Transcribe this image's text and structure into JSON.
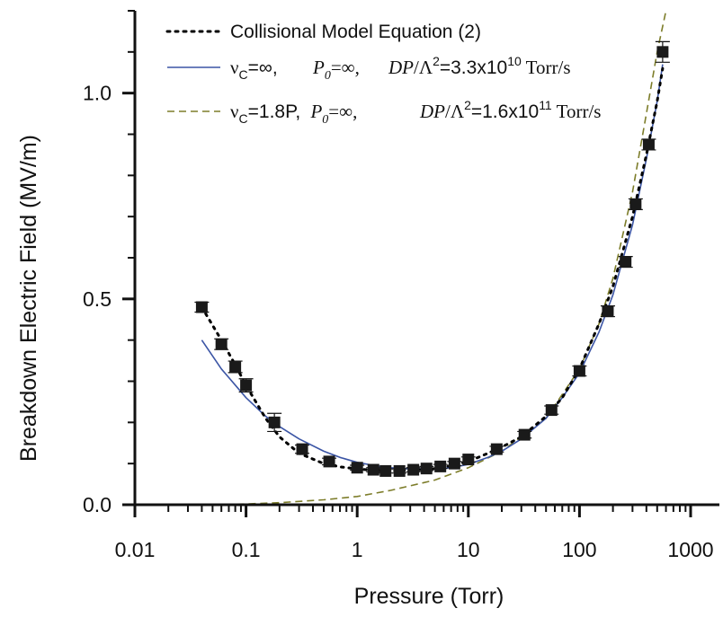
{
  "chart_data": {
    "type": "scatter",
    "xlabel": "Pressure (Torr)",
    "ylabel": "Breakdown Electric Field (MV/m)",
    "xscale": "log",
    "xlim": [
      0.01,
      1000
    ],
    "ylim": [
      0.0,
      1.2
    ],
    "xticks": [
      0.01,
      0.1,
      1,
      10,
      100,
      1000
    ],
    "xtick_labels": [
      "0.01",
      "0.1",
      "1",
      "10",
      "100",
      "1000"
    ],
    "yticks": [
      0.0,
      0.5,
      1.0
    ],
    "ytick_labels": [
      "0.0",
      "0.5",
      "1.0"
    ],
    "grid": false,
    "legend_position": "top-left",
    "colors": {
      "data": "#1a1a1a",
      "collisional": "#000000",
      "blue_model": "#3b55a5",
      "green_model": "#7d7d2a"
    },
    "data_points": {
      "x": [
        0.04,
        0.06,
        0.08,
        0.1,
        0.18,
        0.32,
        0.56,
        1.0,
        1.4,
        1.8,
        2.4,
        3.2,
        4.2,
        5.6,
        7.5,
        10,
        18,
        32,
        56,
        100,
        180,
        260,
        320,
        420,
        560
      ],
      "y": [
        0.48,
        0.39,
        0.335,
        0.29,
        0.2,
        0.135,
        0.105,
        0.09,
        0.085,
        0.082,
        0.082,
        0.085,
        0.088,
        0.093,
        0.1,
        0.11,
        0.135,
        0.17,
        0.23,
        0.325,
        0.47,
        0.59,
        0.73,
        0.875,
        1.1
      ],
      "yerr": [
        0.012,
        0.013,
        0.014,
        0.016,
        0.022,
        0.01,
        0.008,
        0.006,
        0.005,
        0.005,
        0.005,
        0.005,
        0.005,
        0.005,
        0.005,
        0.006,
        0.007,
        0.008,
        0.01,
        0.012,
        0.013,
        0.013,
        0.013,
        0.013,
        0.025
      ]
    },
    "series": [
      {
        "name": "Collisional Model Equation (2)",
        "style": "dotted",
        "x": [
          0.04,
          0.06,
          0.08,
          0.1,
          0.15,
          0.2,
          0.3,
          0.5,
          0.7,
          1.0,
          1.5,
          2,
          3,
          5,
          7,
          10,
          15,
          20,
          30,
          50,
          70,
          100,
          150,
          200,
          300,
          400,
          500,
          560
        ],
        "y": [
          0.48,
          0.4,
          0.34,
          0.29,
          0.21,
          0.165,
          0.125,
          0.1,
          0.092,
          0.087,
          0.083,
          0.082,
          0.083,
          0.088,
          0.095,
          0.105,
          0.125,
          0.14,
          0.165,
          0.215,
          0.26,
          0.33,
          0.44,
          0.53,
          0.7,
          0.85,
          0.98,
          1.06
        ]
      },
      {
        "name": "νC=∞,   P0=∞,   DP/Λ2=3.3x1010 Torr/s",
        "style": "solid",
        "x": [
          0.04,
          0.06,
          0.1,
          0.15,
          0.2,
          0.3,
          0.5,
          0.7,
          1.0,
          1.5,
          2,
          3,
          5,
          7,
          10,
          15,
          20,
          30,
          50,
          70,
          100,
          150,
          200,
          300,
          400,
          500,
          560
        ],
        "y": [
          0.4,
          0.33,
          0.26,
          0.215,
          0.19,
          0.16,
          0.13,
          0.115,
          0.103,
          0.094,
          0.09,
          0.087,
          0.087,
          0.09,
          0.098,
          0.115,
          0.13,
          0.16,
          0.21,
          0.26,
          0.32,
          0.42,
          0.51,
          0.68,
          0.84,
          0.98,
          1.07
        ]
      },
      {
        "name": "νC=1.8P,  P0=∞,   DP/Λ2=1.6x1011 Torr/s",
        "style": "dashed",
        "x": [
          0.04,
          0.1,
          0.2,
          0.5,
          1,
          2,
          5,
          10,
          20,
          50,
          100,
          150,
          200,
          300,
          400,
          500,
          600
        ],
        "y": [
          0.0,
          0.002,
          0.005,
          0.012,
          0.02,
          0.035,
          0.06,
          0.09,
          0.13,
          0.21,
          0.33,
          0.44,
          0.55,
          0.76,
          0.95,
          1.1,
          1.2
        ]
      }
    ]
  }
}
